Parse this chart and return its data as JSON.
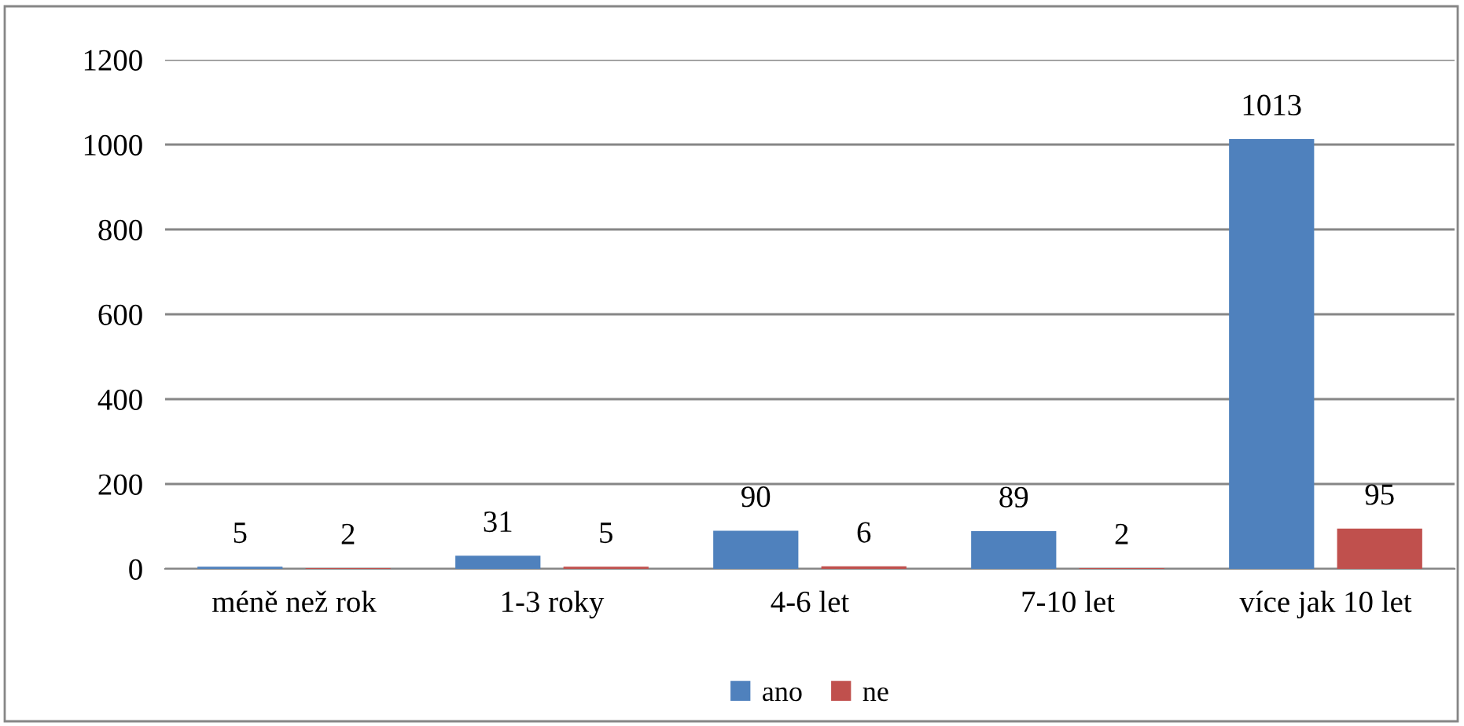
{
  "chart_data": {
    "type": "bar",
    "categories": [
      "méně než rok",
      "1-3 roky",
      "4-6 let",
      "7-10 let",
      "více jak 10 let"
    ],
    "series": [
      {
        "name": "ano",
        "color": "#4f81bd",
        "values": [
          5,
          31,
          90,
          89,
          1013
        ]
      },
      {
        "name": "ne",
        "color": "#c0504d",
        "values": [
          2,
          5,
          6,
          2,
          95
        ]
      }
    ],
    "ylim": [
      0,
      1200
    ],
    "yticks": [
      0,
      200,
      400,
      600,
      800,
      1000,
      1200
    ],
    "grid": "y",
    "legend": "bottom",
    "data_labels": true
  }
}
